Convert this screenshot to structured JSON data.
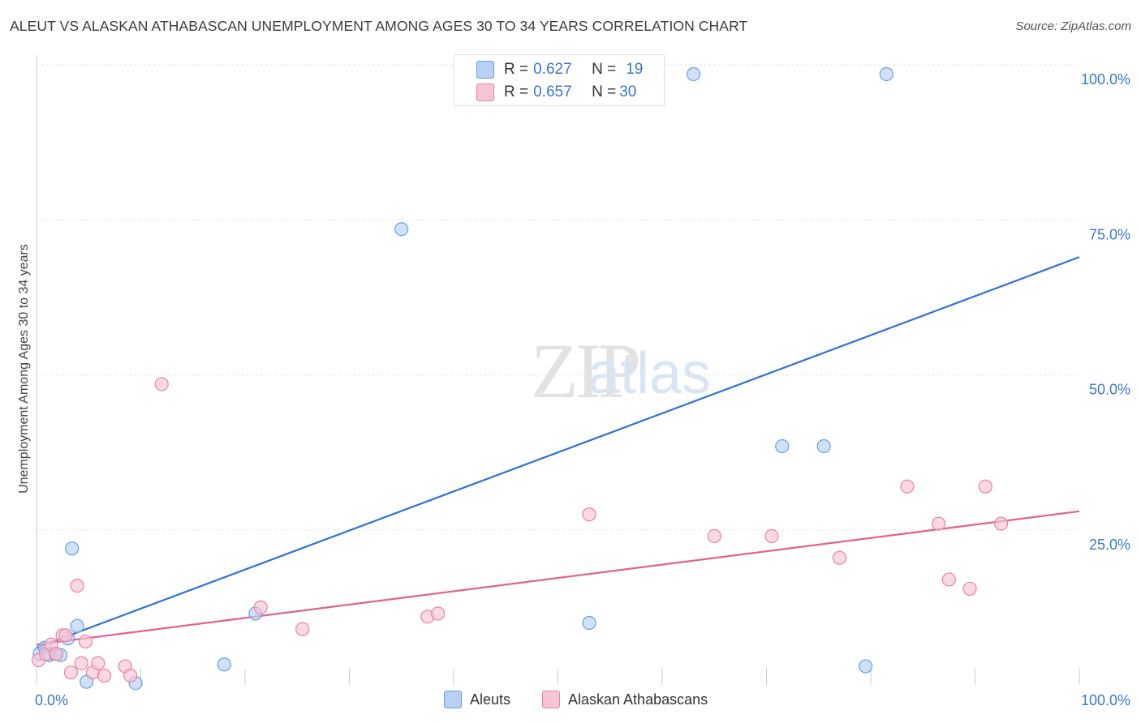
{
  "chart_data": {
    "type": "scatter",
    "title": "ALEUT VS ALASKAN ATHABASCAN UNEMPLOYMENT AMONG AGES 30 TO 34 YEARS CORRELATION CHART",
    "source": "Source: ZipAtlas.com",
    "xlabel": "",
    "ylabel": "Unemployment Among Ages 30 to 34 years",
    "xlim": [
      0,
      100
    ],
    "ylim": [
      0,
      100
    ],
    "x_tick_labels": [
      "0.0%",
      "100.0%"
    ],
    "y_tick_labels": [
      "25.0%",
      "50.0%",
      "75.0%",
      "100.0%"
    ],
    "y_ticks": [
      25,
      50,
      75,
      100
    ],
    "grid": true,
    "watermark": "ZIPatlas",
    "colors": {
      "aleut": "#6b9fe3",
      "aleut_fill": "#b8d0f2",
      "aleut_line": "#2f74d0",
      "athabascan": "#e882a4",
      "athabascan_fill": "#f7c4d5",
      "athabascan_line": "#e0628f",
      "tick_text": "#3b78c7"
    },
    "series": [
      {
        "name": "Aleuts",
        "r_label": "R = ",
        "r_value": "0.627",
        "n_label": "N = ",
        "n_value": "19",
        "trend": {
          "x0": 0,
          "y0": 6.0,
          "x1": 100,
          "y1": 69.0
        },
        "points": [
          [
            0.3,
            5.0
          ],
          [
            0.8,
            6.0
          ],
          [
            1.2,
            4.8
          ],
          [
            1.8,
            5.0
          ],
          [
            2.3,
            4.8
          ],
          [
            3.0,
            7.5
          ],
          [
            3.4,
            22.0
          ],
          [
            3.9,
            9.5
          ],
          [
            4.8,
            0.5
          ],
          [
            9.5,
            0.3
          ],
          [
            18.0,
            3.3
          ],
          [
            21.0,
            11.5
          ],
          [
            35.0,
            73.5
          ],
          [
            53.0,
            10.0
          ],
          [
            63.0,
            98.5
          ],
          [
            71.5,
            38.5
          ],
          [
            75.5,
            38.5
          ],
          [
            79.5,
            3.0
          ],
          [
            81.5,
            98.5
          ]
        ]
      },
      {
        "name": "Alaskan Athabascans",
        "r_label": "R = ",
        "r_value": "0.657",
        "n_label": "N = ",
        "n_value": "30",
        "trend": {
          "x0": 0,
          "y0": 6.5,
          "x1": 100,
          "y1": 28.0
        },
        "points": [
          [
            0.2,
            4.0
          ],
          [
            0.9,
            5.0
          ],
          [
            1.4,
            6.5
          ],
          [
            1.9,
            5.0
          ],
          [
            2.5,
            8.0
          ],
          [
            2.8,
            8.0
          ],
          [
            3.3,
            2.0
          ],
          [
            3.9,
            16.0
          ],
          [
            4.3,
            3.5
          ],
          [
            4.7,
            7.0
          ],
          [
            5.4,
            2.0
          ],
          [
            5.9,
            3.5
          ],
          [
            6.5,
            1.5
          ],
          [
            8.5,
            3.0
          ],
          [
            9.0,
            1.5
          ],
          [
            12.0,
            48.5
          ],
          [
            21.5,
            12.5
          ],
          [
            25.5,
            9.0
          ],
          [
            37.5,
            11.0
          ],
          [
            38.5,
            11.5
          ],
          [
            53.0,
            27.5
          ],
          [
            65.0,
            24.0
          ],
          [
            70.5,
            24.0
          ],
          [
            77.0,
            20.5
          ],
          [
            83.5,
            32.0
          ],
          [
            86.5,
            26.0
          ],
          [
            87.5,
            17.0
          ],
          [
            89.5,
            15.5
          ],
          [
            91.0,
            32.0
          ],
          [
            92.5,
            26.0
          ]
        ]
      }
    ]
  }
}
